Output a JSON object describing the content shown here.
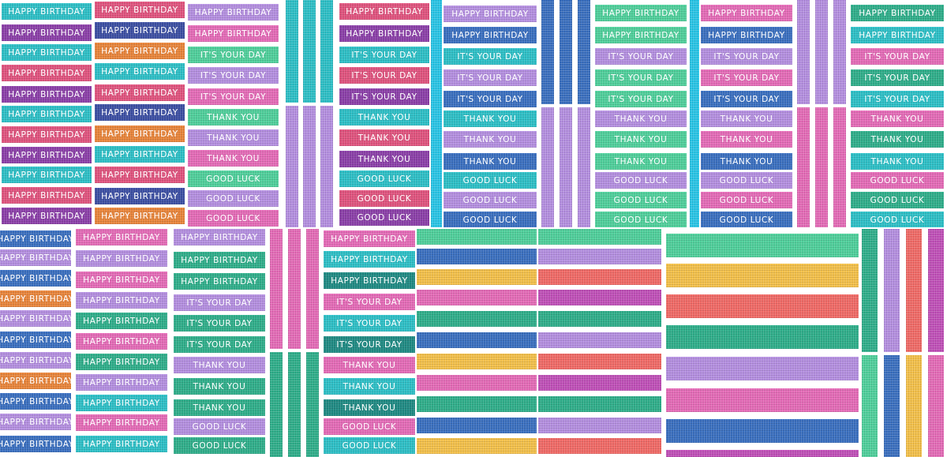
{
  "text": {
    "hb": "HAPPY BIRTHDAY",
    "iyd": "IT'S YOUR DAY",
    "ty": "THANK YOU",
    "gl": "GOOD LUCK"
  },
  "colors": {
    "teal": "#2dbfc6",
    "purple": "#8b3fa8",
    "pink": "#e0537e",
    "orange": "#e8843a",
    "navy": "#3c4fa3",
    "magenta": "#c050b8",
    "lilac": "#b48fe0",
    "mint": "#4fcf9b",
    "green": "#2fae8a",
    "yellow": "#f3c04a",
    "coral": "#f06a66",
    "cyan": "#29c5e6",
    "blue": "#3a6fbf",
    "darkteal": "#1f8a83",
    "pinklight": "#e46bb7"
  }
}
